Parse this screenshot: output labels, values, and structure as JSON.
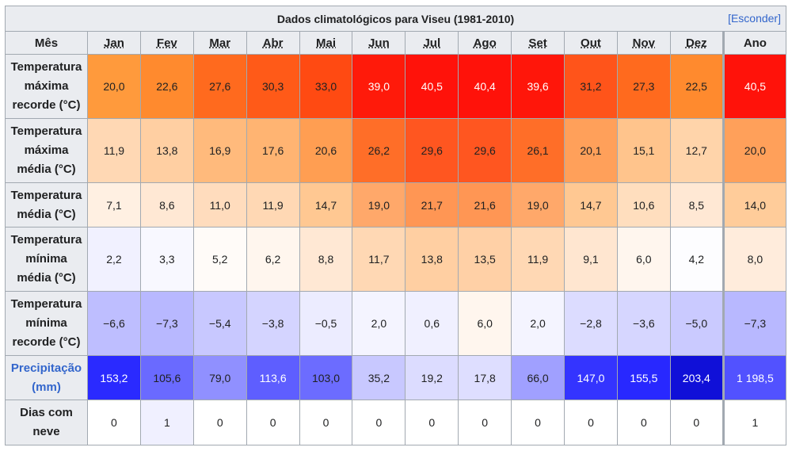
{
  "table": {
    "title": "Dados climatológicos para Viseu (1981-2010)",
    "hide_label": "[Esconder]",
    "corner_header": "Mês",
    "months": [
      "Jan",
      "Fev",
      "Mar",
      "Abr",
      "Mai",
      "Jun",
      "Jul",
      "Ago",
      "Set",
      "Out",
      "Nov",
      "Dez"
    ],
    "year_header": "Ano",
    "rows": [
      {
        "label_lines": [
          "Temperatura",
          "máxima",
          "recorde (°C)"
        ],
        "values": [
          "20,0",
          "22,6",
          "27,6",
          "30,3",
          "33,0",
          "39,0",
          "40,5",
          "40,4",
          "39,6",
          "31,2",
          "27,3",
          "22,5"
        ],
        "year": "40,5",
        "colors": [
          "#ff9a3c",
          "#ff8a2e",
          "#ff6a1e",
          "#ff5a18",
          "#ff4a12",
          "#ff1a0a",
          "#ff120a",
          "#ff120a",
          "#ff160a",
          "#ff541a",
          "#ff6a1e",
          "#ff8a2e"
        ],
        "year_color": "#ff120a",
        "light_text": [
          false,
          false,
          false,
          false,
          false,
          true,
          true,
          true,
          true,
          false,
          false,
          false
        ],
        "year_light": true
      },
      {
        "label_lines": [
          "Temperatura",
          "máxima",
          "média (°C)"
        ],
        "values": [
          "11,9",
          "13,8",
          "16,9",
          "17,6",
          "20,6",
          "26,2",
          "29,6",
          "29,6",
          "26,1",
          "20,1",
          "15,1",
          "12,7"
        ],
        "year": "20,0",
        "colors": [
          "#ffd8b4",
          "#ffcfa2",
          "#ffba7c",
          "#ffb472",
          "#ff9e52",
          "#ff6e28",
          "#ff5620",
          "#ff5620",
          "#ff6e28",
          "#ffa05a",
          "#ffc48c",
          "#ffd4aa"
        ],
        "year_color": "#ffa05a",
        "light_text": [
          false,
          false,
          false,
          false,
          false,
          false,
          false,
          false,
          false,
          false,
          false,
          false
        ],
        "year_light": false
      },
      {
        "label_lines": [
          "Temperatura",
          "média (°C)"
        ],
        "values": [
          "7,1",
          "8,6",
          "11,0",
          "11,9",
          "14,7",
          "19,0",
          "21,7",
          "21,6",
          "19,0",
          "14,7",
          "10,6",
          "8,5"
        ],
        "year": "14,0",
        "colors": [
          "#fff0e2",
          "#ffe8d4",
          "#ffdcbd",
          "#ffd8b4",
          "#ffc892",
          "#ffa86a",
          "#ff9654",
          "#ff9654",
          "#ffa86a",
          "#ffc892",
          "#ffdebe",
          "#ffe8d4"
        ],
        "year_color": "#ffcc9a",
        "light_text": [
          false,
          false,
          false,
          false,
          false,
          false,
          false,
          false,
          false,
          false,
          false,
          false
        ],
        "year_light": false
      },
      {
        "label_lines": [
          "Temperatura",
          "mínima",
          "média (°C)"
        ],
        "values": [
          "2,2",
          "3,3",
          "5,2",
          "6,2",
          "8,8",
          "11,7",
          "13,8",
          "13,5",
          "11,9",
          "9,1",
          "6,0",
          "4,2"
        ],
        "year": "8,0",
        "colors": [
          "#f1f1ff",
          "#f8f8ff",
          "#fffbf8",
          "#fff6ee",
          "#ffe8d4",
          "#ffd8b4",
          "#ffcfa2",
          "#ffd0a6",
          "#ffd8b4",
          "#ffe6d0",
          "#fff6ee",
          "#fdfdff"
        ],
        "year_color": "#ffecdc",
        "light_text": [
          false,
          false,
          false,
          false,
          false,
          false,
          false,
          false,
          false,
          false,
          false,
          false
        ],
        "year_light": false
      },
      {
        "label_lines": [
          "Temperatura",
          "mínima",
          "recorde (°C)"
        ],
        "values": [
          "−6,6",
          "−7,3",
          "−5,4",
          "−3,8",
          "−0,5",
          "2,0",
          "0,6",
          "6,0",
          "2,0",
          "−2,8",
          "−3,6",
          "−5,0"
        ],
        "year": "−7,3",
        "colors": [
          "#bebeff",
          "#b8b8ff",
          "#c8c8ff",
          "#d4d4ff",
          "#ececff",
          "#f4f4ff",
          "#f0f0ff",
          "#fff6ee",
          "#f4f4ff",
          "#dcdcff",
          "#d6d6ff",
          "#cacaff"
        ],
        "year_color": "#b8b8ff",
        "light_text": [
          false,
          false,
          false,
          false,
          false,
          false,
          false,
          false,
          false,
          false,
          false,
          false
        ],
        "year_light": false
      },
      {
        "label_lines": [
          "Precipitação",
          "(mm)"
        ],
        "label_link": true,
        "values": [
          "153,2",
          "105,6",
          "79,0",
          "113,6",
          "103,0",
          "35,2",
          "19,2",
          "17,8",
          "66,0",
          "147,0",
          "155,5",
          "203,4"
        ],
        "year": "1 198,5",
        "colors": [
          "#2a2aff",
          "#6a6aff",
          "#9090ff",
          "#5e5eff",
          "#6c6cff",
          "#c8c8ff",
          "#dcdcff",
          "#dedeff",
          "#a0a0ff",
          "#3434ff",
          "#2828ff",
          "#1010d8"
        ],
        "year_color": "#5252ff",
        "light_text": [
          true,
          false,
          false,
          true,
          false,
          false,
          false,
          false,
          false,
          true,
          true,
          true
        ],
        "year_light": true
      },
      {
        "label_lines": [
          "Dias com",
          "neve"
        ],
        "values": [
          "0",
          "1",
          "0",
          "0",
          "0",
          "0",
          "0",
          "0",
          "0",
          "0",
          "0",
          "0"
        ],
        "year": "1",
        "colors": [
          "#ffffff",
          "#f0f0ff",
          "#ffffff",
          "#ffffff",
          "#ffffff",
          "#ffffff",
          "#ffffff",
          "#ffffff",
          "#ffffff",
          "#ffffff",
          "#ffffff",
          "#ffffff"
        ],
        "year_color": "#ffffff",
        "light_text": [
          false,
          false,
          false,
          false,
          false,
          false,
          false,
          false,
          false,
          false,
          false,
          false
        ],
        "year_light": false
      }
    ]
  }
}
